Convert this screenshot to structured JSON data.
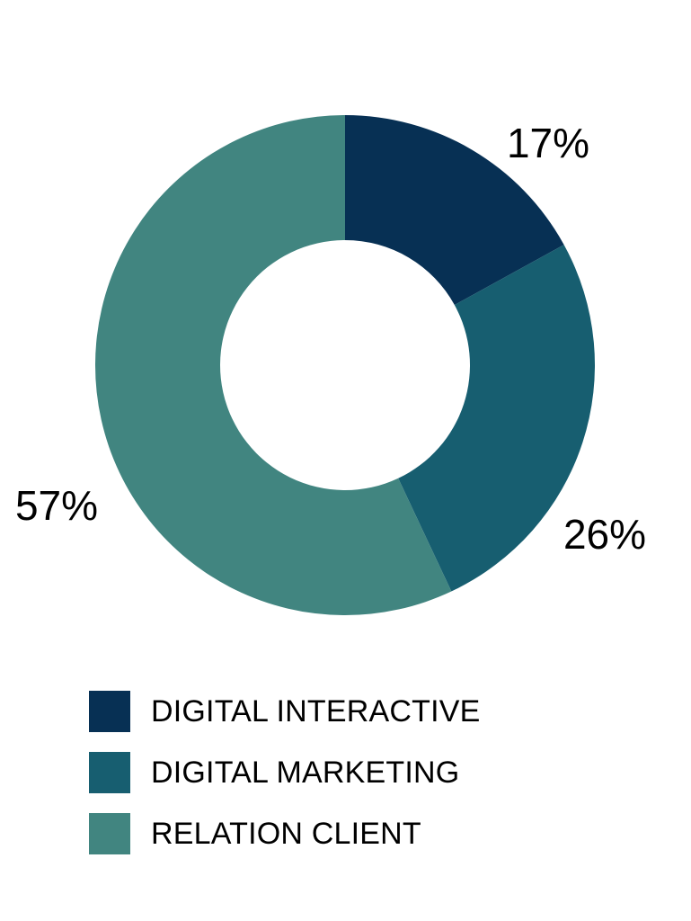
{
  "chart_data": {
    "type": "pie",
    "variant": "donut",
    "start_angle_deg": 0,
    "direction": "clockwise",
    "categories": [
      "DIGITAL INTERACTIVE",
      "DIGITAL MARKETING",
      "RELATION CLIENT"
    ],
    "values": [
      17,
      26,
      57
    ],
    "labels": [
      "17%",
      "26%",
      "57%"
    ],
    "colors": [
      "#073054",
      "#175e70",
      "#418580"
    ],
    "legend_position": "bottom"
  }
}
